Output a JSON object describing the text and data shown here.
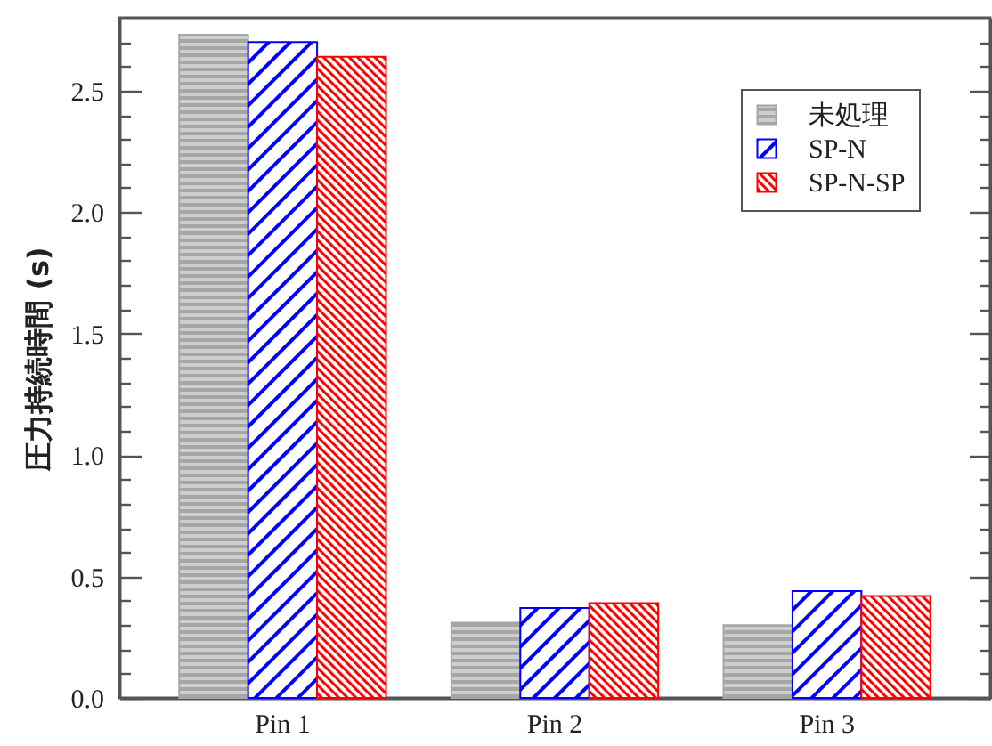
{
  "chart_data": {
    "type": "bar",
    "ylabel": "圧力持続時間 (s)",
    "categories": [
      "Pin 1",
      "Pin 2",
      "Pin 3"
    ],
    "series": [
      {
        "name": "未処理",
        "color": "#a6a6a6",
        "values": [
          2.73,
          0.31,
          0.3
        ]
      },
      {
        "name": "SP-N",
        "color": "#0000ff",
        "values": [
          2.7,
          0.37,
          0.44
        ]
      },
      {
        "name": "SP-N-SP",
        "color": "#ff0000",
        "values": [
          2.64,
          0.39,
          0.42
        ]
      }
    ],
    "ylim": [
      0,
      2.8
    ],
    "yticks": [
      {
        "value": 0,
        "label": "0.0"
      },
      {
        "value": 0.1,
        "label": null
      },
      {
        "value": 0.2,
        "label": null
      },
      {
        "value": 0.3,
        "label": null
      },
      {
        "value": 0.4,
        "label": null
      },
      0.5,
      {
        "value": 0.6,
        "label": null
      },
      {
        "value": 0.7,
        "label": null
      },
      {
        "value": 0.8,
        "label": null
      },
      {
        "value": 0.9,
        "label": null
      },
      {
        "value": 1,
        "label": "1.0"
      },
      {
        "value": 1.1,
        "label": null
      },
      {
        "value": 1.2,
        "label": null
      },
      {
        "value": 1.3,
        "label": null
      },
      {
        "value": 1.4,
        "label": null
      },
      1.5,
      {
        "value": 1.6,
        "label": null
      },
      {
        "value": 1.7,
        "label": null
      },
      {
        "value": 1.8,
        "label": null
      },
      {
        "value": 1.9,
        "label": null
      },
      {
        "value": 2,
        "label": "2.0"
      },
      {
        "value": 2.1,
        "label": null
      },
      {
        "value": 2.2,
        "label": null
      },
      {
        "value": 2.3,
        "label": null
      },
      {
        "value": 2.4,
        "label": null
      },
      2.5,
      {
        "value": 2.6,
        "label": null
      },
      {
        "value": 2.7,
        "label": null
      }
    ],
    "legend": "top right"
  }
}
